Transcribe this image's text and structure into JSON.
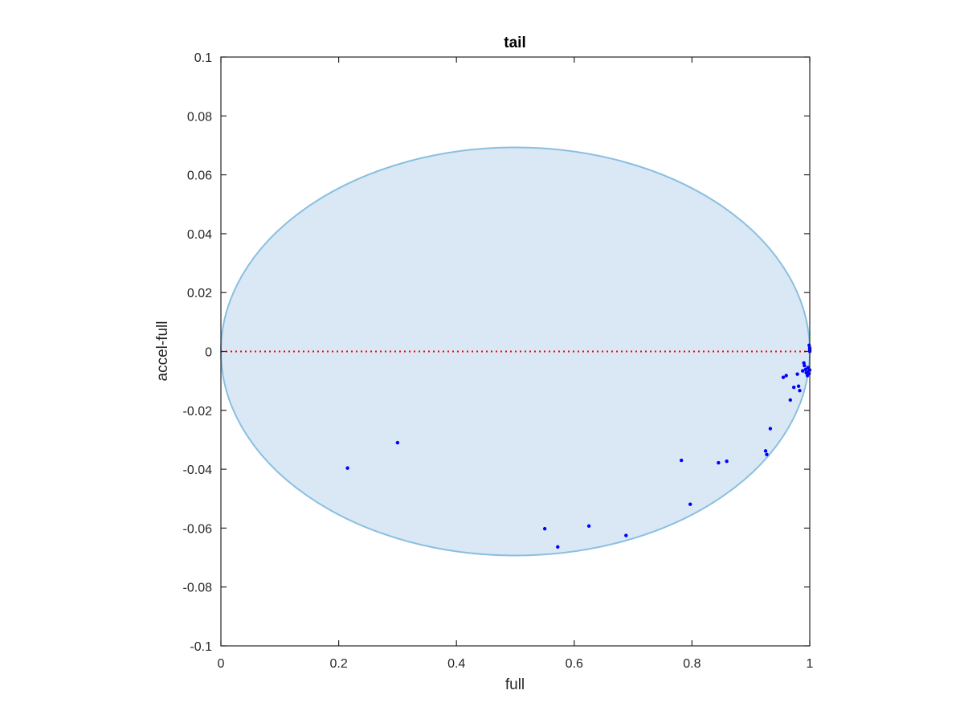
{
  "chart_data": {
    "type": "scatter",
    "title": "tail",
    "xlabel": "full",
    "ylabel": "accel-full",
    "xlim": [
      0,
      1
    ],
    "ylim": [
      -0.1,
      0.1
    ],
    "xticks": [
      0,
      0.2,
      0.4,
      0.6,
      0.8,
      1
    ],
    "xtick_labels": [
      "0",
      "0.2",
      "0.4",
      "0.6",
      "0.8",
      "1"
    ],
    "yticks": [
      0.1,
      0.08,
      0.06,
      0.04,
      0.02,
      0,
      -0.02,
      -0.04,
      -0.06,
      -0.08,
      -0.1
    ],
    "ytick_labels": [
      "0.1",
      "0.08",
      "0.06",
      "0.04",
      "0.02",
      "0",
      "-0.02",
      "-0.04",
      "-0.06",
      "-0.08",
      "-0.1"
    ],
    "grid": false,
    "reference_line": {
      "y": 0,
      "style": "dotted",
      "color": "#ff0000"
    },
    "region": {
      "shape": "ellipse",
      "fill": "#d9e8f4",
      "stroke": "#8abfe0",
      "center": [
        0.5,
        0
      ],
      "x_extent": [
        0,
        1
      ],
      "top": 0.0693,
      "bottom": -0.0693
    },
    "series": [
      {
        "color": "#0000ff",
        "points": [
          [
            0.215,
            -0.0396
          ],
          [
            0.3,
            -0.031
          ],
          [
            0.55,
            -0.0602
          ],
          [
            0.572,
            -0.0664
          ],
          [
            0.625,
            -0.0593
          ],
          [
            0.688,
            -0.0625
          ],
          [
            0.782,
            -0.037
          ],
          [
            0.797,
            -0.0519
          ],
          [
            0.845,
            -0.0378
          ],
          [
            0.859,
            -0.0373
          ],
          [
            0.925,
            -0.0338
          ],
          [
            0.927,
            -0.035
          ],
          [
            0.933,
            -0.0262
          ],
          [
            0.955,
            -0.0088
          ],
          [
            0.96,
            -0.0082
          ],
          [
            0.967,
            -0.0165
          ],
          [
            0.973,
            -0.0122
          ],
          [
            0.979,
            -0.0077
          ],
          [
            0.981,
            -0.0118
          ],
          [
            0.983,
            -0.0133
          ],
          [
            0.988,
            -0.0066
          ],
          [
            0.99,
            -0.0039
          ],
          [
            0.991,
            -0.0048
          ],
          [
            0.993,
            -0.0061
          ],
          [
            0.994,
            -0.0072
          ],
          [
            0.996,
            -0.0082
          ],
          [
            0.997,
            -0.0055
          ],
          [
            0.998,
            -0.0068
          ],
          [
            0.999,
            -0.0075
          ],
          [
            1.0,
            -0.0063
          ],
          [
            0.999,
            0.0021
          ],
          [
            1.0,
            0.0012
          ],
          [
            1.0,
            0.0006
          ],
          [
            1.0,
            0.0003
          ],
          [
            1.0,
            0.0
          ]
        ]
      }
    ]
  }
}
